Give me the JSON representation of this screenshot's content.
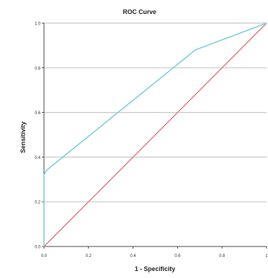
{
  "chart_data": {
    "type": "line",
    "title": "ROC Curve",
    "xlabel": "1 - Specificity",
    "ylabel": "Sensitivity",
    "xlim": [
      0,
      1
    ],
    "ylim": [
      0,
      1
    ],
    "grid": "horizontal",
    "x_ticks": [
      {
        "value": 0,
        "label": "0.0"
      },
      {
        "value": 0.2,
        "label": "0.2"
      },
      {
        "value": 0.4,
        "label": "0.4"
      },
      {
        "value": 0.6,
        "label": "0.6"
      },
      {
        "value": 0.8,
        "label": "0.8"
      },
      {
        "value": 1,
        "label": "1"
      }
    ],
    "y_ticks": [
      {
        "value": 0,
        "label": "0.0"
      },
      {
        "value": 0.2,
        "label": "0.2"
      },
      {
        "value": 0.4,
        "label": "0.4"
      },
      {
        "value": 0.6,
        "label": "0.6"
      },
      {
        "value": 0.8,
        "label": "0.8"
      },
      {
        "value": 1,
        "label": "1.0"
      }
    ],
    "series": [
      {
        "color": "#7ecfd8",
        "points": [
          [
            0,
            0
          ],
          [
            0,
            0.32
          ],
          [
            0.01,
            0.34
          ],
          [
            0.68,
            0.88
          ],
          [
            1,
            1
          ]
        ]
      },
      {
        "color": "#d98a8a",
        "points": [
          [
            0,
            0
          ],
          [
            1,
            1
          ]
        ]
      }
    ]
  }
}
